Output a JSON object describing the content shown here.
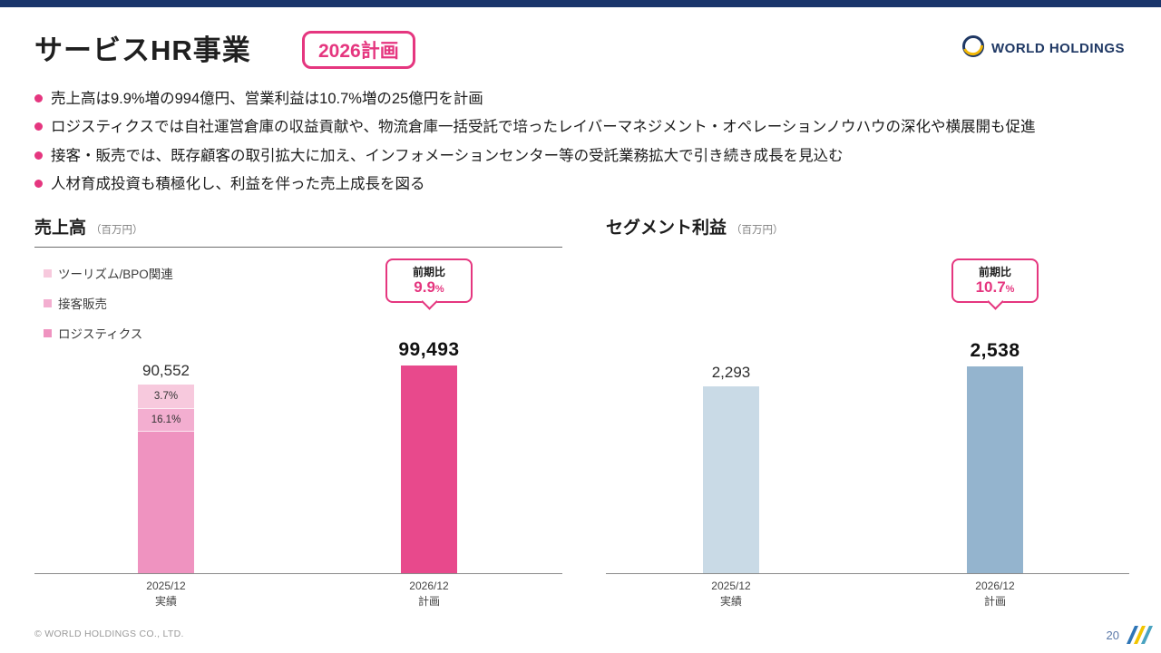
{
  "page": {
    "title": "サービスHR事業",
    "badge": "2026計画",
    "logo_text": "WORLD HOLDINGS",
    "footer_copyright": "© WORLD HOLDINGS CO., LTD.",
    "page_number": "20"
  },
  "bullets": [
    "売上高は9.9%増の994億円、営業利益は10.7%増の25億円を計画",
    "ロジスティクスでは自社運営倉庫の収益貢献や、物流倉庫一括受託で培ったレイバーマネジメント・オペレーションノウハウの深化や横展開も促進",
    "接客・販売では、既存顧客の取引拡大に加え、インフォメーションセンター等の受託業務拡大で引き続き成長を見込む",
    "人材育成投資も積極化し、利益を伴った売上成長を図る"
  ],
  "colors": {
    "accent_pink": "#e5367f",
    "navy": "#1a356b"
  },
  "chart_data": [
    {
      "type": "bar",
      "title": "売上高",
      "unit": "（百万円）",
      "categories": [
        [
          "2025/12",
          "実績"
        ],
        [
          "2026/12",
          "計画"
        ]
      ],
      "values": [
        90552,
        99493
      ],
      "value_labels": [
        "90,552",
        "99,493"
      ],
      "ylim": [
        0,
        100000
      ],
      "legend": [
        {
          "label": "ツーリズム/BPO関連",
          "color": "#f7c9dd"
        },
        {
          "label": "接客販売",
          "color": "#f3aed0"
        },
        {
          "label": "ロジスティクス",
          "color": "#ef93c0"
        }
      ],
      "stack": [
        {
          "label": "3.7%",
          "share": 13
        },
        {
          "label": "16.1%",
          "share": 12
        },
        {
          "label": "",
          "share": 75
        }
      ],
      "plan_color": "#e8498c",
      "callout": {
        "label": "前期比",
        "value": "9.9",
        "suffix": "%"
      }
    },
    {
      "type": "bar",
      "title": "セグメント利益",
      "unit": "（百万円）",
      "categories": [
        [
          "2025/12",
          "実績"
        ],
        [
          "2026/12",
          "計画"
        ]
      ],
      "values": [
        2293,
        2538
      ],
      "value_labels": [
        "2,293",
        "2,538"
      ],
      "ylim": [
        0,
        2560
      ],
      "actual_color": "#c9dae6",
      "plan_color": "#94b4ce",
      "callout": {
        "label": "前期比",
        "value": "10.7",
        "suffix": "%"
      }
    }
  ]
}
